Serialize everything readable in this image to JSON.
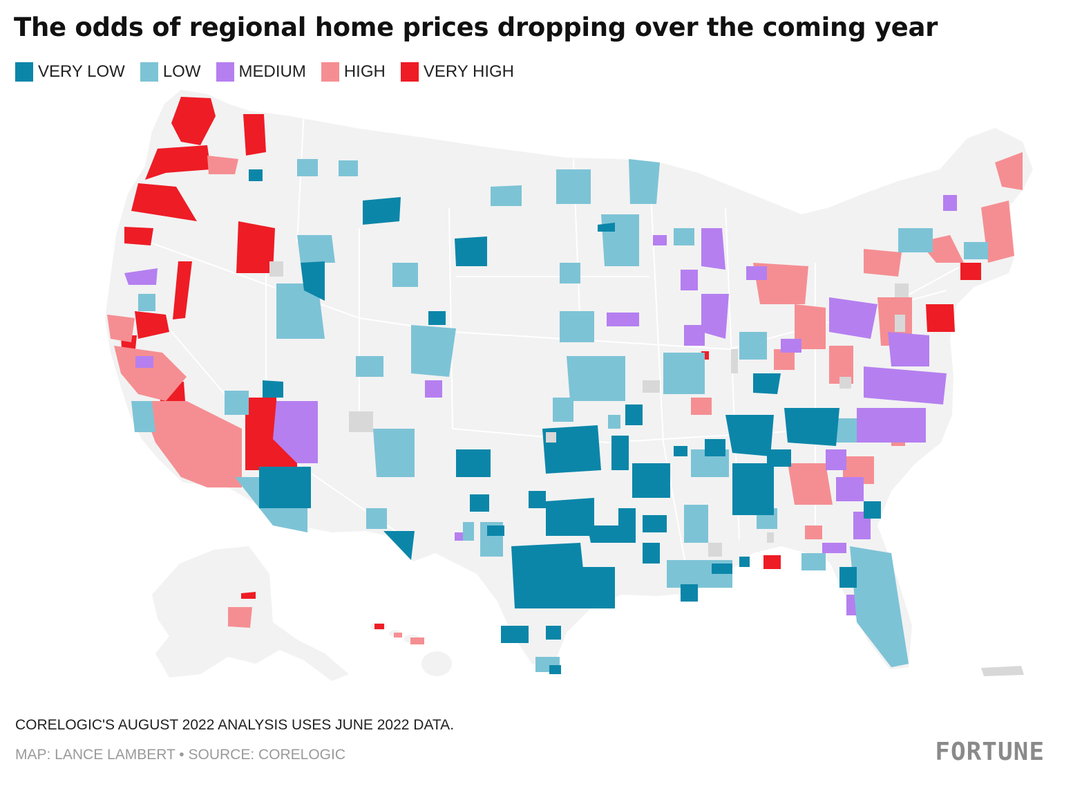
{
  "title": "The odds of regional home prices dropping over the coming year",
  "legend": [
    {
      "label": "VERY LOW",
      "color": "#0b86a9"
    },
    {
      "label": "LOW",
      "color": "#7dc3d6"
    },
    {
      "label": "MEDIUM",
      "color": "#b57ff0"
    },
    {
      "label": "HIGH",
      "color": "#f58e92"
    },
    {
      "label": "VERY HIGH",
      "color": "#ee1c25"
    }
  ],
  "colors": {
    "land": "#f2f2f2",
    "no_data": "#d8d8d8",
    "borders": "#ffffff"
  },
  "note": "CORELOGIC'S AUGUST 2022 ANALYSIS USES JUNE 2022 DATA.",
  "credit": "MAP: LANCE LAMBERT • SOURCE: CORELOGIC",
  "brand": "FORTUNE"
}
